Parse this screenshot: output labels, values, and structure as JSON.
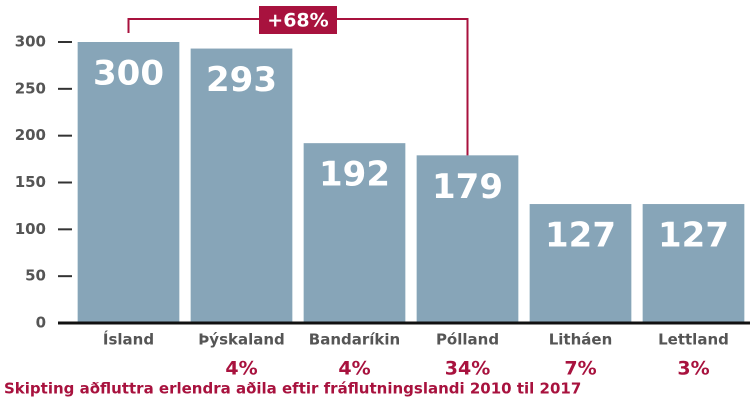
{
  "chart_data": {
    "type": "bar",
    "categories": [
      "Ísland",
      "Þýskaland",
      "Bandaríkin",
      "Pólland",
      "Litháen",
      "Lettland"
    ],
    "values": [
      300,
      293,
      192,
      179,
      127,
      127
    ],
    "color": "#87a5b8",
    "share_labels": [
      null,
      "4%",
      "4%",
      "34%",
      "7%",
      "3%"
    ],
    "annotation": "+68%",
    "caption": "Skipting aðfluttra erlendra aðila eftir fráflutningslandi 2010 til 2017",
    "ylim": [
      0,
      300
    ],
    "yticks": [
      0,
      50,
      100,
      150,
      200,
      250,
      300
    ],
    "grid": false
  }
}
